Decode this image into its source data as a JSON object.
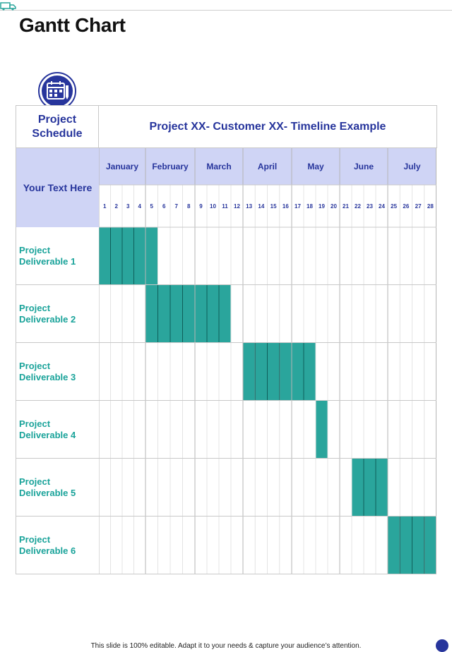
{
  "page": {
    "title": "Gantt Chart",
    "footer": "This slide is 100% editable. Adapt it to your needs & capture your audience’s attention."
  },
  "colors": {
    "accent": "#27359c",
    "teal": "#2aa59c",
    "label_teal": "#1aa39a",
    "month_band": "#cfd4f5",
    "grid": "#c8c8c8"
  },
  "icons": [
    "truck-icon",
    "calendar-icon"
  ],
  "table": {
    "corner_label": "Project\nSchedule",
    "header_title": "Project XX- Customer XX- Timeline Example",
    "side_label": "Your Text Here"
  },
  "chart_data": {
    "type": "gantt",
    "title": "Project XX- Customer XX- Timeline Example",
    "months": [
      {
        "name": "January",
        "weeks": [
          1,
          4
        ]
      },
      {
        "name": "February",
        "weeks": [
          5,
          8
        ]
      },
      {
        "name": "March",
        "weeks": [
          9,
          12
        ]
      },
      {
        "name": "April",
        "weeks": [
          13,
          16
        ]
      },
      {
        "name": "May",
        "weeks": [
          17,
          20
        ]
      },
      {
        "name": "June",
        "weeks": [
          21,
          24
        ]
      },
      {
        "name": "July",
        "weeks": [
          25,
          28
        ]
      }
    ],
    "weeks": [
      1,
      2,
      3,
      4,
      5,
      6,
      7,
      8,
      9,
      10,
      11,
      12,
      13,
      14,
      15,
      16,
      17,
      18,
      19,
      20,
      21,
      22,
      23,
      24,
      25,
      26,
      27,
      28
    ],
    "tasks": [
      {
        "name": "Project\nDeliverable 1",
        "start_week": 1,
        "end_week": 5
      },
      {
        "name": "Project\nDeliverable 2",
        "start_week": 5,
        "end_week": 11
      },
      {
        "name": "Project\nDeliverable 3",
        "start_week": 13,
        "end_week": 18
      },
      {
        "name": "Project\nDeliverable 4",
        "start_week": 19,
        "end_week": 19
      },
      {
        "name": "Project\nDeliverable 5",
        "start_week": 22,
        "end_week": 24
      },
      {
        "name": "Project\nDeliverable 6",
        "start_week": 25,
        "end_week": 28
      }
    ]
  }
}
